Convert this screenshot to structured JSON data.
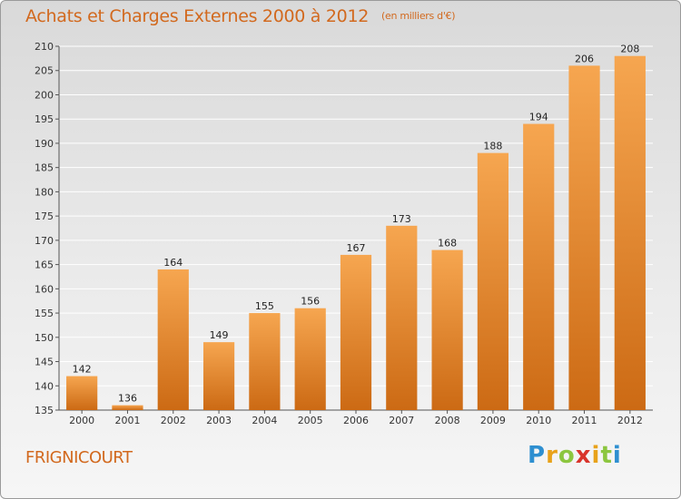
{
  "header": {
    "title": "Achats et Charges Externes 2000 à 2012",
    "unit": "(en milliers d'€)"
  },
  "footer": {
    "town": "FRIGNICOURT",
    "brand": "Proxiti"
  },
  "colors": {
    "bar_light": "#f6a650",
    "bar_dark": "#cc6a14",
    "title": "#d2691e",
    "grid": "#ffffff"
  },
  "chart_data": {
    "type": "bar",
    "title": "Achats et Charges Externes 2000 à 2012",
    "subtitle": "(en milliers d'€)",
    "xlabel": "",
    "ylabel": "",
    "categories": [
      "2000",
      "2001",
      "2002",
      "2003",
      "2004",
      "2005",
      "2006",
      "2007",
      "2008",
      "2009",
      "2010",
      "2011",
      "2012"
    ],
    "values": [
      142,
      136,
      164,
      149,
      155,
      156,
      167,
      173,
      168,
      188,
      194,
      206,
      208
    ],
    "ylim": [
      135,
      210
    ],
    "yticks": [
      135,
      140,
      145,
      150,
      155,
      160,
      165,
      170,
      175,
      180,
      185,
      190,
      195,
      200,
      205,
      210
    ],
    "grid": true,
    "legend": "none"
  }
}
